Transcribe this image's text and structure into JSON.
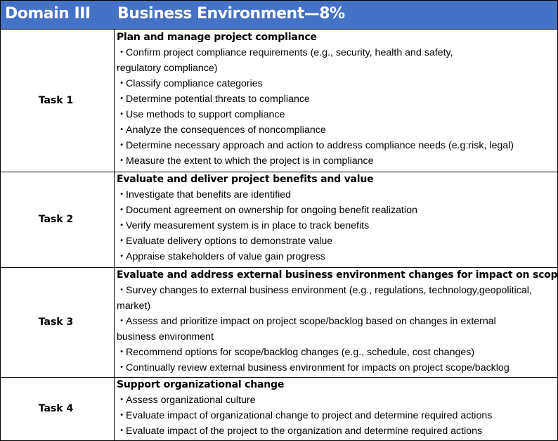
{
  "header": {
    "domain": "Domain III",
    "title": "Business Environment—8%",
    "bg_color": "#4472c4"
  },
  "tasks": [
    {
      "label": "Task 1",
      "title": "Plan and manage project compliance",
      "lines": [
        {
          "bullet": "・",
          "text": "Confirm project compliance requirements (e.g., security, health and safety,"
        },
        {
          "bullet": "",
          "text": "regulatory compliance)"
        },
        {
          "bullet": "・",
          "text": "Classify compliance categories"
        },
        {
          "bullet": "・",
          "text": "Determine potential threats to compliance"
        },
        {
          "bullet": "・",
          "text": "Use methods to support compliance"
        },
        {
          "bullet": "・",
          "text": "Analyze the consequences of noncompliance"
        },
        {
          "bullet": "・",
          "text": "Determine necessary approach and action to address compliance needs (e.g:risk, legal)"
        },
        {
          "bullet": "・",
          "text": "Measure the extent to which the project is in compliance"
        }
      ]
    },
    {
      "label": "Task 2",
      "title": "Evaluate and deliver project benefits and value",
      "lines": [
        {
          "bullet": "・",
          "text": "Investigate that benefits are identified"
        },
        {
          "bullet": "・",
          "text": "Document agreement on ownership for ongoing benefit realization"
        },
        {
          "bullet": "・",
          "text": "Verify measurement system is in place to track benefits"
        },
        {
          "bullet": "・",
          "text": "Evaluate delivery options to demonstrate value"
        },
        {
          "bullet": "・",
          "text": "Appraise stakeholders of value gain progress"
        }
      ]
    },
    {
      "label": "Task 3",
      "title": "Evaluate and address external business environment changes for impact on scope",
      "lines": [
        {
          "bullet": "・",
          "text": "Survey changes to external business environment (e.g., regulations, technology,geopolitical,"
        },
        {
          "bullet": "",
          "text": "market)"
        },
        {
          "bullet": "・",
          "text": "Assess and prioritize impact on project scope/backlog based on changes in external"
        },
        {
          "bullet": "",
          "text": "business environment"
        },
        {
          "bullet": "・",
          "text": "Recommend options for scope/backlog changes (e.g., schedule, cost changes)"
        },
        {
          "bullet": "・",
          "text": "Continually review external business environment for impacts on project scope/backlog"
        }
      ]
    },
    {
      "label": "Task 4",
      "title": "Support organizational change",
      "lines": [
        {
          "bullet": "・",
          "text": "Assess organizational culture"
        },
        {
          "bullet": "・",
          "text": "Evaluate impact of organizational change to project and determine required actions"
        },
        {
          "bullet": "・",
          "text": "Evaluate impact of the project to the organization and determine required actions"
        }
      ]
    }
  ]
}
